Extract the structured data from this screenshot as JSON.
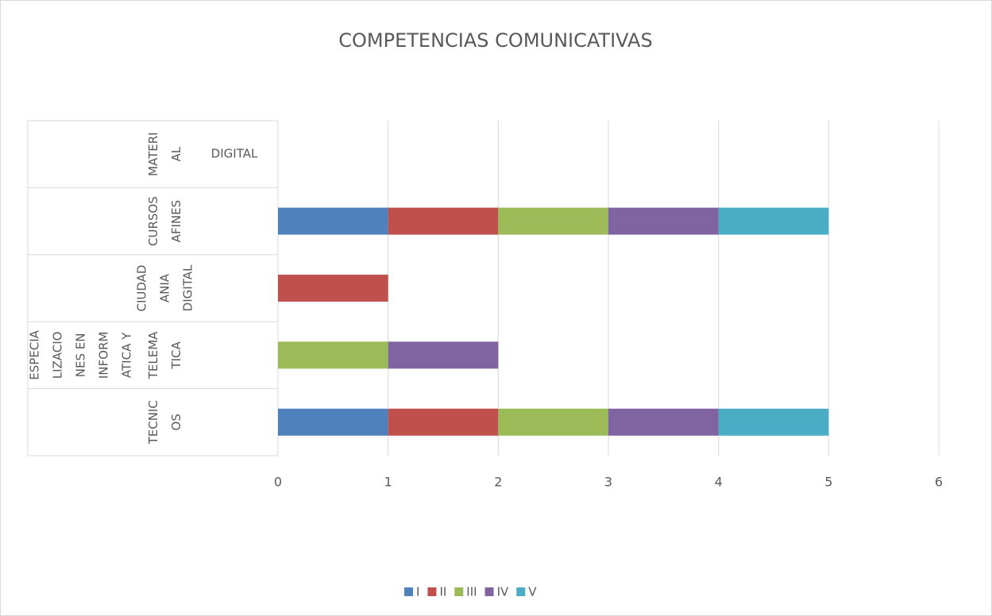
{
  "chart_data": {
    "type": "stacked_barh",
    "title": "COMPETENCIAS COMUNICATIVAS",
    "categories": [
      [
        "TECNIC",
        "OS"
      ],
      [
        "TELEMA",
        "TICA"
      ],
      [
        "CIUDAD",
        "ANIA",
        "DIGITAL"
      ],
      [
        "CURSOS",
        "AFINES"
      ],
      [
        "MATERI",
        "AL"
      ]
    ],
    "groups": [
      [
        "ESPECIA",
        "LIZACIO",
        "NES EN",
        "INFORM",
        "ATICA Y"
      ],
      [
        "DIGITAL"
      ]
    ],
    "series": [
      {
        "name": "I",
        "color": "#4f81bd",
        "values": [
          1,
          null,
          null,
          1,
          null
        ]
      },
      {
        "name": "II",
        "color": "#c0504d",
        "values": [
          1,
          null,
          1,
          1,
          null
        ]
      },
      {
        "name": "III",
        "color": "#9bbb59",
        "values": [
          1,
          1,
          null,
          1,
          null
        ]
      },
      {
        "name": "IV",
        "color": "#8064a2",
        "values": [
          1,
          1,
          null,
          1,
          null
        ]
      },
      {
        "name": "V",
        "color": "#4bacc6",
        "values": [
          1,
          null,
          null,
          1,
          null
        ]
      }
    ],
    "xlim": [
      0,
      6
    ],
    "xticks": [
      0,
      1,
      2,
      3,
      4,
      5,
      6
    ],
    "grid": true,
    "legend": "bottom"
  }
}
